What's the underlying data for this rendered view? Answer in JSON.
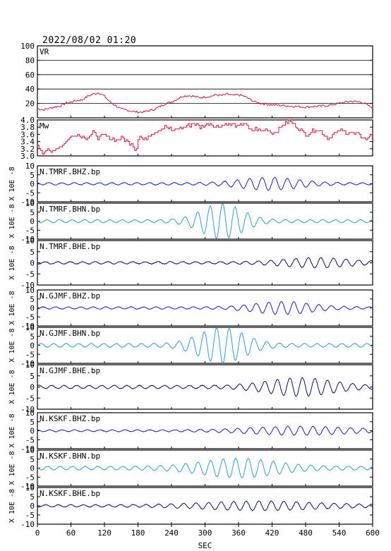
{
  "header": {
    "datetime": "2022/08/02 01:20"
  },
  "colors": {
    "vr": "#d2143c",
    "mw": "#d2143c",
    "bhz": "#1a1acd",
    "bhn": "#2e9bd6",
    "bhe": "#0a0a6e",
    "frame": "#000000",
    "grid": "#000000"
  },
  "chart_data": {
    "type": "line",
    "xlabel": "SEC",
    "xlim": [
      0,
      600
    ],
    "xticks": [
      0,
      60,
      120,
      180,
      240,
      300,
      360,
      420,
      480,
      540,
      600
    ],
    "panels": [
      {
        "key": "vr",
        "label": "VR",
        "ylim": [
          0,
          100
        ],
        "yticks": [
          20,
          40,
          60,
          80,
          100
        ],
        "grid": true,
        "kind": "vr"
      },
      {
        "key": "mw",
        "label": "Mw",
        "ylim": [
          3.0,
          4.0
        ],
        "yticks": [
          "3.0",
          "3.2",
          "3.4",
          "3.6",
          "3.8",
          "4.0"
        ],
        "grid": false,
        "kind": "mw"
      },
      {
        "key": "tmrf_bhz",
        "label": "N.TMRF.BHZ.bp",
        "ylim": [
          -10,
          10
        ],
        "yticks": [
          -10,
          -5,
          0,
          5,
          10
        ],
        "kind": "wave",
        "color": "bhz",
        "amp": 3.0,
        "center": 415,
        "width": 70,
        "base": 0.6
      },
      {
        "key": "tmrf_bhn",
        "label": "N.TMRF.BHN.bp",
        "ylim": [
          -10,
          10
        ],
        "yticks": [
          -10,
          -5,
          0,
          5,
          10
        ],
        "kind": "wave",
        "color": "bhn",
        "amp": 9.0,
        "center": 330,
        "width": 50,
        "base": 0.8
      },
      {
        "key": "tmrf_bhe",
        "label": "N.TMRF.BHE.bp",
        "ylim": [
          -10,
          10
        ],
        "yticks": [
          -10,
          -5,
          0,
          5,
          10
        ],
        "kind": "wave",
        "color": "bhe",
        "amp": 1.8,
        "center": 500,
        "width": 80,
        "base": 0.5
      },
      {
        "key": "gjmf_bhz",
        "label": "N.GJMF.BHZ.bp",
        "ylim": [
          -10,
          10
        ],
        "yticks": [
          -10,
          -5,
          0,
          5,
          10
        ],
        "kind": "wave",
        "color": "bhz",
        "amp": 3.0,
        "center": 440,
        "width": 70,
        "base": 0.6
      },
      {
        "key": "gjmf_bhn",
        "label": "N.GJMF.BHN.bp",
        "ylim": [
          -10,
          10
        ],
        "yticks": [
          -10,
          -5,
          0,
          5,
          10
        ],
        "kind": "wave",
        "color": "bhn",
        "amp": 9.0,
        "center": 330,
        "width": 55,
        "base": 1.0
      },
      {
        "key": "gjmf_bhe",
        "label": "N.GJMF.BHE.bp",
        "ylim": [
          -10,
          10
        ],
        "yticks": [
          -10,
          -5,
          0,
          5,
          10
        ],
        "kind": "wave",
        "color": "bhe",
        "amp": 3.5,
        "center": 470,
        "width": 80,
        "base": 0.7
      },
      {
        "key": "kskf_bhz",
        "label": "N.KSKF.BHZ.bp",
        "ylim": [
          -10,
          10
        ],
        "yticks": [
          -10,
          -5,
          0,
          5,
          10
        ],
        "kind": "wave",
        "color": "bhz",
        "amp": 2.0,
        "center": 470,
        "width": 120,
        "base": 0.5
      },
      {
        "key": "kskf_bhn",
        "label": "N.KSKF.BHN.bp",
        "ylim": [
          -10,
          10
        ],
        "yticks": [
          -10,
          -5,
          0,
          5,
          10
        ],
        "kind": "wave",
        "color": "bhn",
        "amp": 4.5,
        "center": 360,
        "width": 90,
        "base": 1.0
      },
      {
        "key": "kskf_bhe",
        "label": "N.KSKF.BHE.bp",
        "ylim": [
          -10,
          10
        ],
        "yticks": [
          -10,
          -5,
          0,
          5,
          10
        ],
        "kind": "wave",
        "color": "bhe",
        "amp": 2.0,
        "center": 400,
        "width": 140,
        "base": 0.6
      }
    ],
    "vr_series": {
      "x": [
        0,
        10,
        20,
        30,
        40,
        50,
        60,
        70,
        80,
        90,
        100,
        110,
        120,
        130,
        140,
        150,
        160,
        170,
        180,
        190,
        200,
        210,
        220,
        230,
        240,
        250,
        260,
        270,
        280,
        290,
        300,
        310,
        320,
        330,
        340,
        350,
        360,
        370,
        380,
        390,
        400,
        420,
        440,
        460,
        480,
        500,
        520,
        540,
        560,
        580,
        590,
        600
      ],
      "y": [
        13,
        11,
        13,
        15,
        16,
        20,
        22,
        24,
        25,
        30,
        33,
        35,
        30,
        22,
        17,
        12,
        11,
        9,
        8,
        8,
        10,
        12,
        16,
        20,
        22,
        26,
        30,
        31,
        30,
        28,
        29,
        30,
        32,
        31,
        33,
        31,
        32,
        30,
        26,
        22,
        20,
        18,
        17,
        16,
        15,
        16,
        17,
        20,
        23,
        22,
        18,
        14
      ]
    },
    "mw_series": {
      "x": [
        0,
        10,
        15,
        25,
        30,
        40,
        50,
        60,
        70,
        80,
        90,
        100,
        110,
        120,
        130,
        140,
        150,
        160,
        170,
        175,
        180,
        185,
        190,
        200,
        210,
        220,
        230,
        240,
        250,
        260,
        270,
        280,
        290,
        300,
        310,
        320,
        330,
        340,
        350,
        360,
        370,
        380,
        390,
        400,
        410,
        420,
        430,
        440,
        450,
        460,
        480,
        500,
        520,
        540,
        560,
        580,
        590,
        600
      ],
      "y": [
        3.3,
        3.1,
        3.15,
        3.1,
        3.2,
        3.25,
        3.4,
        3.55,
        3.6,
        3.55,
        3.5,
        3.65,
        3.5,
        3.55,
        3.5,
        3.45,
        3.5,
        3.4,
        3.35,
        3.1,
        3.5,
        3.55,
        3.4,
        3.6,
        3.65,
        3.75,
        3.8,
        3.7,
        3.75,
        3.8,
        3.85,
        3.9,
        3.8,
        3.85,
        3.9,
        3.8,
        3.85,
        3.9,
        3.85,
        3.8,
        3.95,
        3.7,
        3.75,
        3.7,
        3.75,
        3.65,
        3.7,
        3.9,
        3.95,
        3.85,
        3.6,
        3.75,
        3.5,
        3.7,
        3.65,
        3.55,
        3.45,
        3.7
      ]
    }
  }
}
